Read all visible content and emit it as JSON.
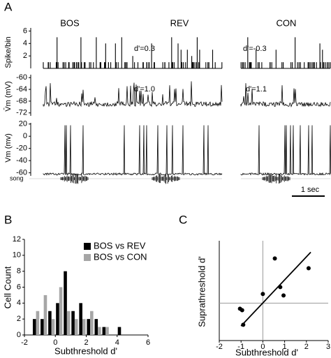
{
  "panel_a": {
    "panel_label": "A",
    "conditions": [
      "BOS",
      "REV",
      "CON"
    ],
    "row_labels": [
      "Spike/bin",
      "V̄m (mV)",
      "Vm (mv)",
      "song"
    ],
    "spike_yticks": [
      2,
      4,
      6
    ],
    "spike_ylim": [
      0,
      6.5
    ],
    "mean_vm_yticks": [
      -60,
      -64,
      -68,
      -72
    ],
    "mean_vm_ylim": [
      -73,
      -59
    ],
    "vm_yticks": [
      20,
      0,
      -20,
      -40,
      -60
    ],
    "vm_ylim": [
      -65,
      22
    ],
    "spike_dprime": [
      "d'=0.3",
      "d'=-0.3"
    ],
    "vm_dprime": [
      "d'=1.0",
      "d'=1.1"
    ],
    "scale_bar": "1 sec"
  },
  "chart_data": [
    {
      "type": "bar",
      "panel_label": "B",
      "xlabel": "Subthreshold d'",
      "ylabel": "Cell Count",
      "x": [
        -1.25,
        -0.75,
        -0.25,
        0.25,
        0.75,
        1.25,
        1.75,
        2.25,
        2.75,
        3.25,
        3.75,
        4.25
      ],
      "series": [
        {
          "name": "BOS vs REV",
          "color": "#000000",
          "values": [
            2,
            2,
            3,
            4,
            8,
            3,
            4,
            2,
            2,
            1,
            0,
            1
          ]
        },
        {
          "name": "BOS vs CON",
          "color": "#a6a6a6",
          "values": [
            3,
            5,
            2,
            6,
            3,
            2,
            2,
            3,
            1,
            1,
            0,
            0
          ]
        }
      ],
      "xlim": [
        -2,
        6
      ],
      "xticks": [
        -2,
        0,
        2,
        4,
        6
      ],
      "ylim": [
        0,
        12
      ],
      "yticks": [
        0,
        2,
        4,
        6,
        8,
        10,
        12
      ]
    },
    {
      "type": "scatter",
      "panel_label": "C",
      "xlabel": "Subthreshold d'",
      "ylabel": "Suprathreshold d'",
      "x": [
        -1.05,
        -0.95,
        -0.9,
        0.0,
        0.55,
        0.8,
        0.95,
        2.1
      ],
      "values": [
        -0.27,
        -0.34,
        -1.04,
        0.44,
        2.15,
        0.77,
        0.37,
        1.68
      ],
      "color": "#000000",
      "fit_line": {
        "x": [
          -1,
          2.2
        ],
        "y": [
          -1.1,
          2.45
        ]
      },
      "xlim": [
        -2,
        3
      ],
      "xticks": [
        -2,
        -1,
        0,
        1,
        2,
        3
      ],
      "ylim": [
        -1.8,
        3
      ],
      "reference_lines": [
        0
      ]
    }
  ]
}
